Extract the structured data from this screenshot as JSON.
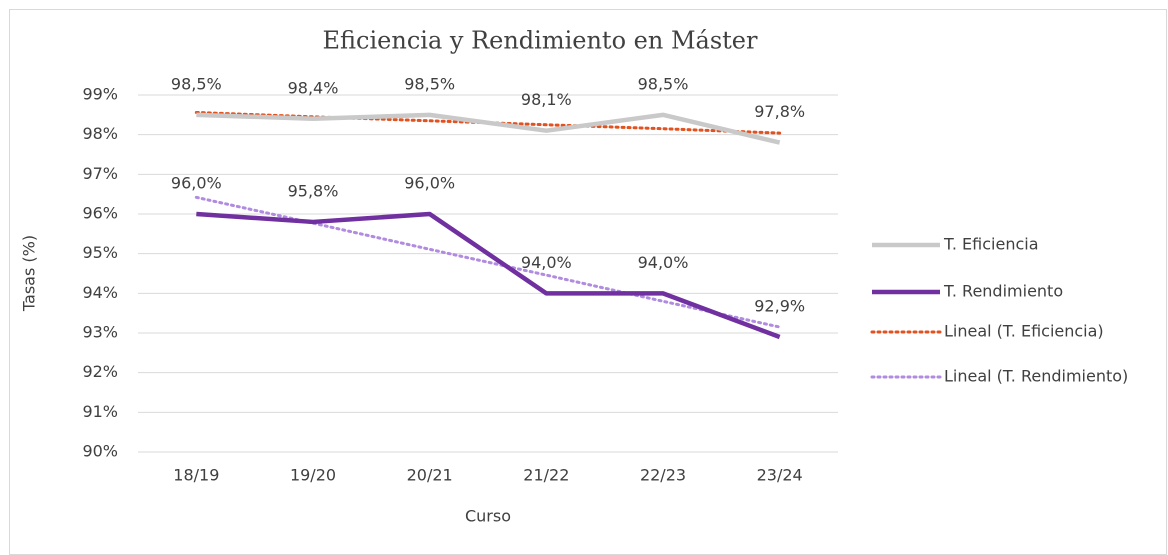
{
  "chart_data": {
    "type": "line",
    "title": "Eficiencia y Rendimiento en Máster",
    "x_label": "Curso",
    "y_label": "Tasas (%)",
    "categories": [
      "18/19",
      "19/20",
      "20/21",
      "21/22",
      "22/23",
      "23/24"
    ],
    "series": [
      {
        "name": "T. Eficiencia",
        "color": "#c9c9c9",
        "line_style": "solid",
        "values": [
          98.5,
          98.4,
          98.5,
          98.1,
          98.5,
          97.8
        ],
        "value_labels": [
          "98,5%",
          "98,4%",
          "98,5%",
          "98,1%",
          "98,5%",
          "97,8%"
        ]
      },
      {
        "name": "T. Rendimiento",
        "color": "#7030a0",
        "line_style": "solid",
        "values": [
          96.0,
          95.8,
          96.0,
          94.0,
          94.0,
          92.9
        ],
        "value_labels": [
          "96,0%",
          "95,8%",
          "96,0%",
          "94,0%",
          "94,0%",
          "92,9%"
        ]
      },
      {
        "name": "Lineal (T. Eficiencia)",
        "color": "#e0521f",
        "line_style": "dotted",
        "values": [
          98.56,
          98.45,
          98.35,
          98.25,
          98.15,
          98.04
        ]
      },
      {
        "name": "Lineal (T. Rendimiento)",
        "color": "#b08be0",
        "line_style": "dotted",
        "values": [
          96.42,
          95.77,
          95.11,
          94.46,
          93.8,
          93.15
        ]
      }
    ],
    "ylim": [
      90,
      99
    ],
    "yticks": [
      {
        "value": 90,
        "label": "90%"
      },
      {
        "value": 91,
        "label": "91%"
      },
      {
        "value": 92,
        "label": "92%"
      },
      {
        "value": 93,
        "label": "93%"
      },
      {
        "value": 94,
        "label": "94%"
      },
      {
        "value": 95,
        "label": "95%"
      },
      {
        "value": 96,
        "label": "96%"
      },
      {
        "value": 97,
        "label": "97%"
      },
      {
        "value": 98,
        "label": "98%"
      },
      {
        "value": 99,
        "label": "99%"
      }
    ],
    "grid": true,
    "legend": "right"
  }
}
